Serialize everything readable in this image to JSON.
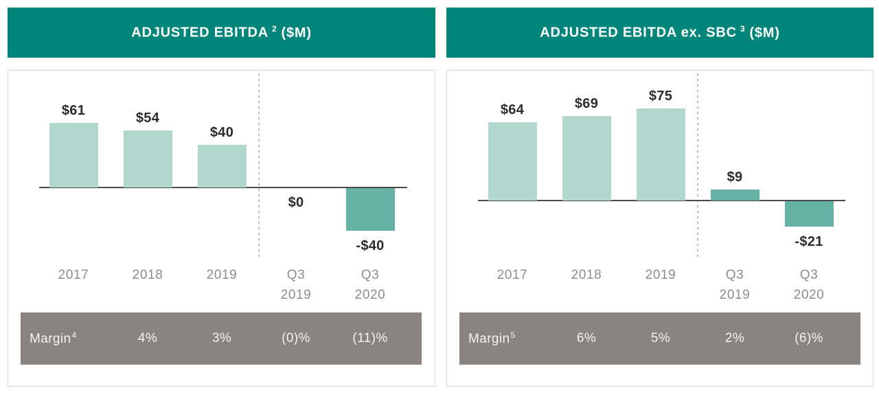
{
  "colors": {
    "header_bg": "#00857b",
    "header_text": "#ffffff",
    "bar_annual": "#b2d7cd",
    "bar_quarterly": "#65b2a4",
    "margin_bar_bg": "#8a8481",
    "margin_text": "#f5f2f0",
    "value_text": "#2e2c29",
    "category_text": "#8c8c8c",
    "axis_line": "#4a4a4a",
    "divider_dots": "#b8b8b8",
    "panel_border": "#d6d6d6"
  },
  "chart_data": [
    {
      "type": "bar",
      "title": {
        "main": "ADJUSTED EBITDA",
        "sup": "2",
        "suffix": "($M)"
      },
      "unit": "$M",
      "categories": [
        "2017",
        "2018",
        "2019",
        "Q3 2019",
        "Q3 2020"
      ],
      "values": [
        61,
        54,
        40,
        0,
        -40
      ],
      "value_labels": [
        "$61",
        "$54",
        "$40",
        "$0",
        "-$40"
      ],
      "bar_styles": [
        "annual",
        "annual",
        "annual",
        "quarterly",
        "quarterly"
      ],
      "divider_after": "2019",
      "grid": false,
      "margin": {
        "label": "Margin",
        "sup": "4",
        "values": [
          "",
          "4%",
          "3%",
          "(0)%",
          "(11)%"
        ]
      }
    },
    {
      "type": "bar",
      "title": {
        "main": "ADJUSTED EBITDA ex. SBC",
        "sup": "3",
        "suffix": "($M)"
      },
      "unit": "$M",
      "categories": [
        "2017",
        "2018",
        "2019",
        "Q3 2019",
        "Q3 2020"
      ],
      "values": [
        64,
        69,
        75,
        9,
        -21
      ],
      "value_labels": [
        "$64",
        "$69",
        "$75",
        "$9",
        "-$21"
      ],
      "bar_styles": [
        "annual",
        "annual",
        "annual",
        "quarterly",
        "quarterly"
      ],
      "divider_after": "2019",
      "grid": false,
      "margin": {
        "label": "Margin",
        "sup": "5",
        "values": [
          "",
          "6%",
          "5%",
          "2%",
          "(6)%"
        ]
      }
    }
  ]
}
